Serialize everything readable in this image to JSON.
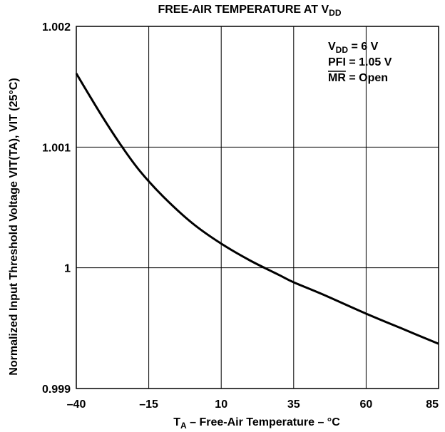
{
  "chart_data": {
    "type": "line",
    "title": {
      "main": "FREE-AIR TEMPERATURE AT V",
      "sub": "DD"
    },
    "xlabel": {
      "t": "T",
      "sub": "A",
      "rest": " – Free-Air Temperature – °C"
    },
    "ylabel": "Normalized Input Threshold Voltage VIT(TA), VIT (25°C)",
    "xlim": [
      -40,
      85
    ],
    "ylim": [
      0.999,
      1.002
    ],
    "xticks": [
      -40,
      -15,
      10,
      35,
      60,
      85
    ],
    "xtick_labels": [
      "–40",
      "–15",
      "10",
      "35",
      "60",
      "85"
    ],
    "yticks": [
      0.999,
      1,
      1.001,
      1.002
    ],
    "ytick_labels": [
      "0.999",
      "1",
      "1.001",
      "1.002"
    ],
    "grid": true,
    "legend_placement": "top-right",
    "annotations": [
      {
        "main": "V",
        "sub": "DD",
        "rest": " = 6 V",
        "overline": false
      },
      {
        "main": "PFI",
        "sub": "",
        "rest": " = 1.05 V",
        "overline": false
      },
      {
        "main": "MR",
        "sub": "",
        "rest": " = Open",
        "overline": true
      }
    ],
    "series": [
      {
        "x": [
          -40,
          -32,
          -25,
          -18,
          -10,
          0,
          10,
          20,
          30,
          35,
          45,
          60,
          72,
          85
        ],
        "values": [
          1.00161,
          1.00129,
          1.00103,
          1.0008,
          1.00059,
          1.00037,
          1.0002,
          1.00006,
          0.99994,
          0.99988,
          0.99978,
          0.99962,
          0.9995,
          0.99937
        ]
      }
    ]
  }
}
